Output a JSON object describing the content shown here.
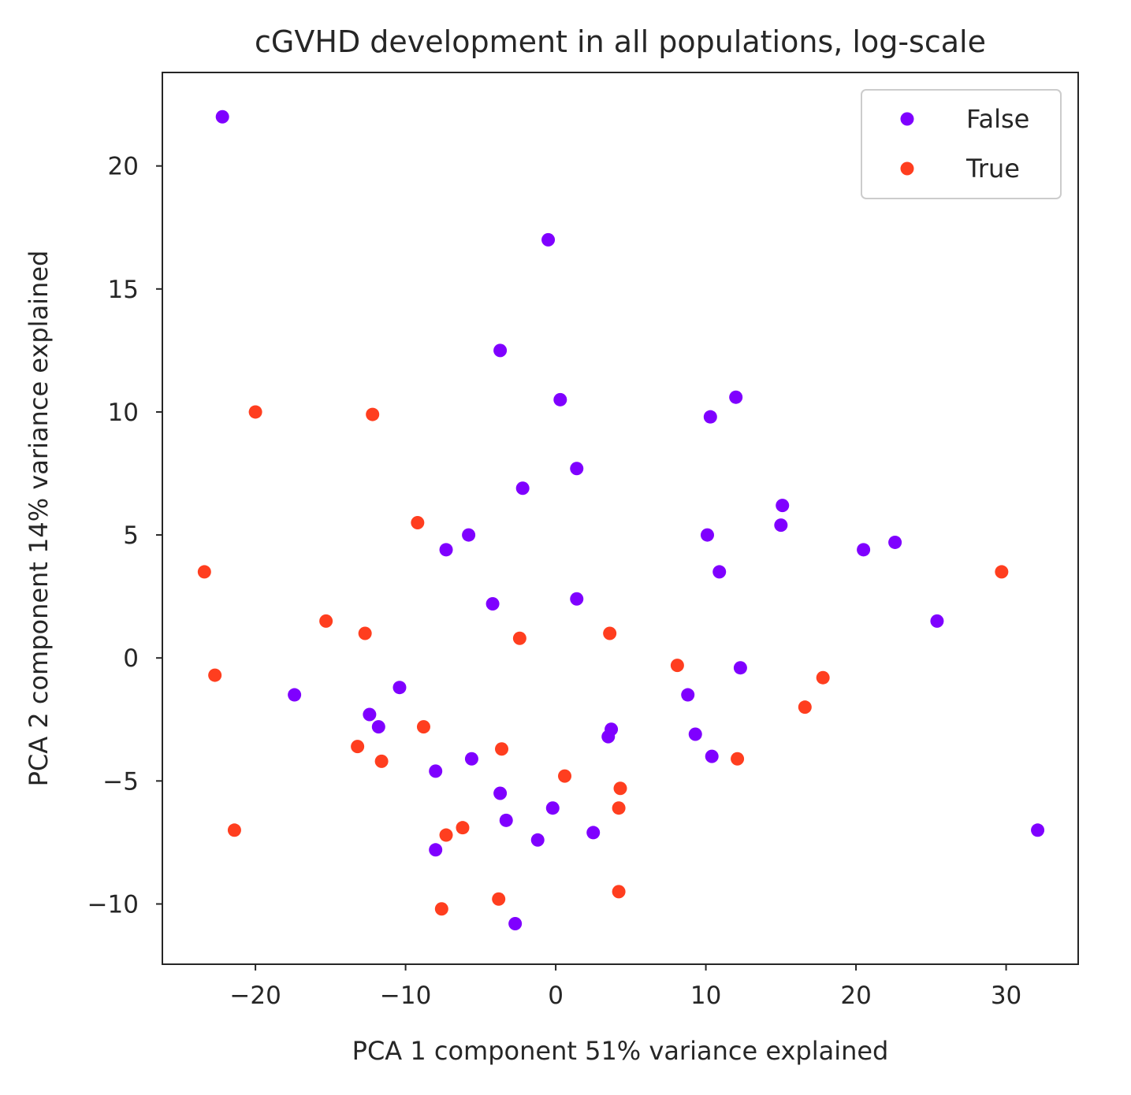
{
  "chart_data": {
    "type": "scatter",
    "title": "cGVHD development in  all populations, log-scale",
    "xlabel": "PCA 1 component 51% variance explained",
    "ylabel": "PCA 2 component 14% variance explained",
    "xlim": [
      -26.2,
      34.8
    ],
    "ylim": [
      -12.45,
      23.8
    ],
    "xticks": [
      -20,
      -10,
      0,
      10,
      20,
      30
    ],
    "xtick_labels": [
      "−20",
      "−10",
      "0",
      "10",
      "20",
      "30"
    ],
    "yticks": [
      -10,
      -5,
      0,
      5,
      10,
      15,
      20
    ],
    "ytick_labels": [
      "−10",
      "−5",
      "0",
      "5",
      "10",
      "15",
      "20"
    ],
    "grid": false,
    "legend_position": "top-right",
    "series": [
      {
        "name": "False",
        "color": "#7f00ff",
        "points": [
          [
            -22.2,
            22.0
          ],
          [
            -0.5,
            17.0
          ],
          [
            -3.7,
            12.5
          ],
          [
            0.3,
            10.5
          ],
          [
            12.0,
            10.6
          ],
          [
            10.3,
            9.8
          ],
          [
            1.4,
            7.7
          ],
          [
            -2.2,
            6.9
          ],
          [
            15.1,
            6.2
          ],
          [
            15.0,
            5.4
          ],
          [
            -5.8,
            5.0
          ],
          [
            10.1,
            5.0
          ],
          [
            22.6,
            4.7
          ],
          [
            -7.3,
            4.4
          ],
          [
            20.5,
            4.4
          ],
          [
            10.9,
            3.5
          ],
          [
            1.4,
            2.4
          ],
          [
            -4.2,
            2.2
          ],
          [
            25.4,
            1.5
          ],
          [
            12.3,
            -0.4
          ],
          [
            -10.4,
            -1.2
          ],
          [
            -17.4,
            -1.5
          ],
          [
            8.8,
            -1.5
          ],
          [
            -12.4,
            -2.3
          ],
          [
            -11.8,
            -2.8
          ],
          [
            3.7,
            -2.9
          ],
          [
            3.5,
            -3.2
          ],
          [
            9.3,
            -3.1
          ],
          [
            -5.6,
            -4.1
          ],
          [
            10.4,
            -4.0
          ],
          [
            -8.0,
            -4.6
          ],
          [
            -3.7,
            -5.5
          ],
          [
            -0.2,
            -6.1
          ],
          [
            -3.3,
            -6.6
          ],
          [
            2.5,
            -7.1
          ],
          [
            -1.2,
            -7.4
          ],
          [
            -8.0,
            -7.8
          ],
          [
            -2.7,
            -10.8
          ],
          [
            32.1,
            -7.0
          ]
        ]
      },
      {
        "name": "True",
        "color": "#ff3e1f",
        "points": [
          [
            -20.0,
            10.0
          ],
          [
            -12.2,
            9.9
          ],
          [
            -9.2,
            5.5
          ],
          [
            -23.4,
            3.5
          ],
          [
            29.7,
            3.5
          ],
          [
            -15.3,
            1.5
          ],
          [
            -12.7,
            1.0
          ],
          [
            3.6,
            1.0
          ],
          [
            -2.4,
            0.8
          ],
          [
            8.1,
            -0.3
          ],
          [
            17.8,
            -0.8
          ],
          [
            -22.7,
            -0.7
          ],
          [
            16.6,
            -2.0
          ],
          [
            -8.8,
            -2.8
          ],
          [
            -13.2,
            -3.6
          ],
          [
            -3.6,
            -3.7
          ],
          [
            -11.6,
            -4.2
          ],
          [
            12.1,
            -4.1
          ],
          [
            0.6,
            -4.8
          ],
          [
            4.3,
            -5.3
          ],
          [
            4.2,
            -6.1
          ],
          [
            -6.2,
            -6.9
          ],
          [
            -7.3,
            -7.2
          ],
          [
            -21.4,
            -7.0
          ],
          [
            -3.8,
            -9.8
          ],
          [
            4.2,
            -9.5
          ],
          [
            -7.6,
            -10.2
          ]
        ]
      }
    ]
  }
}
